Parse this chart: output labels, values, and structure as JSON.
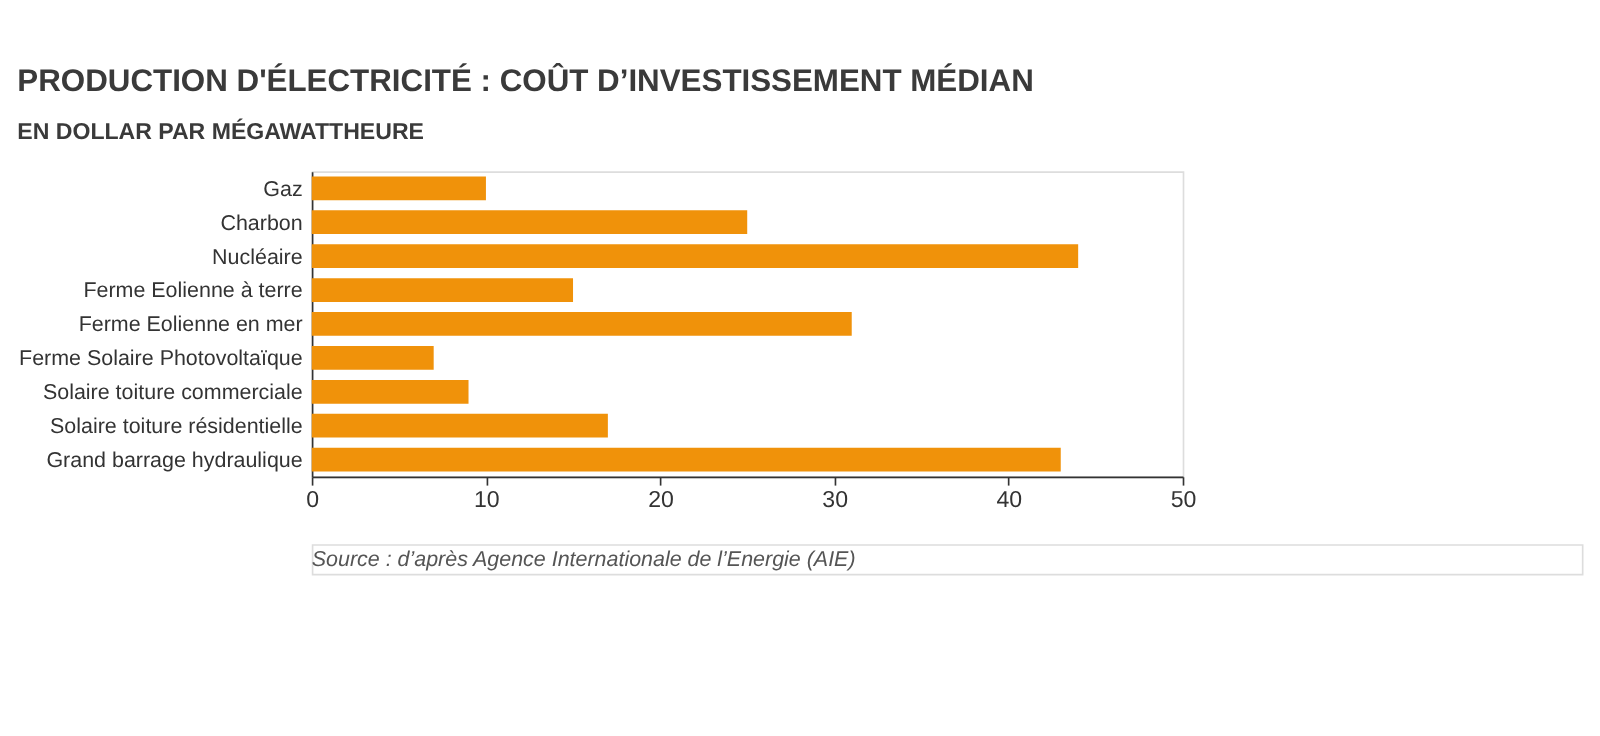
{
  "chart_data": {
    "type": "bar",
    "orientation": "horizontal",
    "title": "PRODUCTION D'ÉLECTRICITÉ : COÛT D’INVESTISSEMENT MÉDIAN",
    "subtitle": "EN DOLLAR PAR MÉGAWATTHEURE",
    "categories": [
      "Gaz",
      "Charbon",
      "Nucléaire",
      "Ferme Eolienne à terre",
      "Ferme Eolienne en mer",
      "Ferme Solaire Photovoltaïque",
      "Solaire toiture commerciale",
      "Solaire toiture résidentielle",
      "Grand barrage hydraulique"
    ],
    "values": [
      10,
      25,
      44,
      15,
      31,
      7,
      9,
      17,
      43
    ],
    "color": "#f0920a",
    "xlim": [
      0,
      50
    ],
    "xticks": [
      0,
      10,
      20,
      30,
      40,
      50
    ],
    "grid": false,
    "annotations": [
      "Source : d’après Agence Internationale de l’Energie (AIE)"
    ]
  }
}
